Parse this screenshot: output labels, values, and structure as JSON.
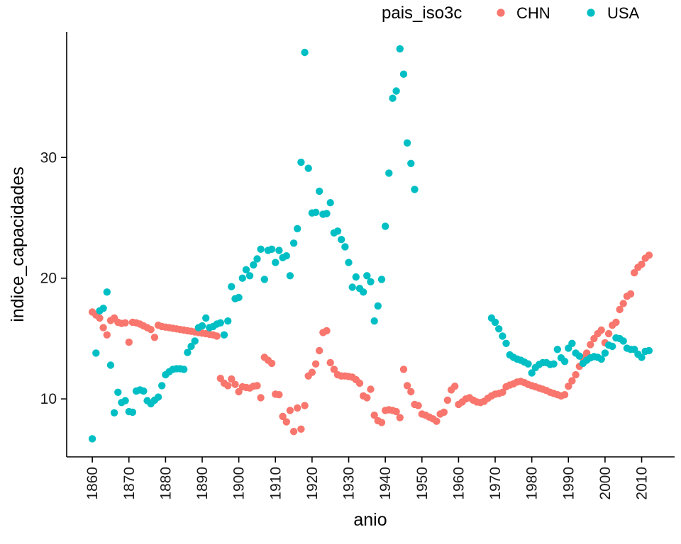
{
  "legend": {
    "title": "pais_iso3c",
    "items": [
      {
        "label": "CHN",
        "color": "#F8766D"
      },
      {
        "label": "USA",
        "color": "#00BFC4"
      }
    ]
  },
  "axes": {
    "x_label": "anio",
    "y_label": "indice_capacidades",
    "x_ticks": [
      "1860",
      "1870",
      "1880",
      "1890",
      "1900",
      "1910",
      "1920",
      "1930",
      "1940",
      "1950",
      "1960",
      "1970",
      "1980",
      "1990",
      "2000",
      "2010"
    ],
    "y_ticks": [
      "10",
      "20",
      "30"
    ]
  },
  "colors": {
    "chn": "#F8766D",
    "usa": "#00BFC4",
    "axis_line": "#000000",
    "tick_text": "#1a1a1a",
    "title_text": "#000000",
    "background": "#ffffff"
  },
  "chart_data": {
    "type": "scatter",
    "title": "",
    "xlabel": "anio",
    "ylabel": "indice_capacidades",
    "legend_title": "pais_iso3c",
    "legend_position": "top",
    "grid": false,
    "xlim": [
      1853,
      2019
    ],
    "ylim": [
      5.2,
      40.4
    ],
    "x_tick_values": [
      1860,
      1870,
      1880,
      1890,
      1900,
      1910,
      1920,
      1930,
      1940,
      1950,
      1960,
      1970,
      1980,
      1990,
      2000,
      2010
    ],
    "y_tick_values": [
      10,
      20,
      30
    ],
    "point_radius": 5.2,
    "series": [
      {
        "name": "CHN",
        "color": "#F8766D",
        "points": [
          [
            1860,
            17.2
          ],
          [
            1861,
            16.95
          ],
          [
            1862,
            16.7
          ],
          [
            1863,
            15.9
          ],
          [
            1864,
            15.3
          ],
          [
            1865,
            16.5
          ],
          [
            1866,
            16.7
          ],
          [
            1867,
            16.35
          ],
          [
            1868,
            16.25
          ],
          [
            1869,
            16.3
          ],
          [
            1870,
            14.7
          ],
          [
            1871,
            16.35
          ],
          [
            1872,
            16.3
          ],
          [
            1873,
            16.2
          ],
          [
            1874,
            16.05
          ],
          [
            1875,
            15.9
          ],
          [
            1876,
            15.75
          ],
          [
            1877,
            15.1
          ],
          [
            1878,
            16.1
          ],
          [
            1879,
            16.0
          ],
          [
            1880,
            15.95
          ],
          [
            1881,
            15.9
          ],
          [
            1882,
            15.85
          ],
          [
            1883,
            15.8
          ],
          [
            1884,
            15.75
          ],
          [
            1885,
            15.7
          ],
          [
            1886,
            15.65
          ],
          [
            1887,
            15.6
          ],
          [
            1888,
            15.55
          ],
          [
            1889,
            15.5
          ],
          [
            1890,
            15.45
          ],
          [
            1891,
            15.4
          ],
          [
            1892,
            15.35
          ],
          [
            1893,
            15.3
          ],
          [
            1894,
            15.2
          ],
          [
            1895,
            11.7
          ],
          [
            1896,
            11.3
          ],
          [
            1897,
            11.1
          ],
          [
            1898,
            11.65
          ],
          [
            1899,
            11.2
          ],
          [
            1900,
            10.6
          ],
          [
            1901,
            11.0
          ],
          [
            1902,
            10.95
          ],
          [
            1903,
            10.9
          ],
          [
            1904,
            11.05
          ],
          [
            1905,
            11.1
          ],
          [
            1906,
            10.1
          ],
          [
            1907,
            13.45
          ],
          [
            1908,
            13.2
          ],
          [
            1909,
            12.95
          ],
          [
            1910,
            10.4
          ],
          [
            1911,
            10.35
          ],
          [
            1912,
            8.55
          ],
          [
            1913,
            8.1
          ],
          [
            1914,
            9.05
          ],
          [
            1915,
            7.3
          ],
          [
            1916,
            9.25
          ],
          [
            1917,
            7.5
          ],
          [
            1918,
            9.45
          ],
          [
            1919,
            11.9
          ],
          [
            1920,
            12.2
          ],
          [
            1921,
            12.9
          ],
          [
            1922,
            14.0
          ],
          [
            1923,
            15.5
          ],
          [
            1924,
            15.65
          ],
          [
            1925,
            13.0
          ],
          [
            1926,
            12.45
          ],
          [
            1927,
            12.0
          ],
          [
            1928,
            11.9
          ],
          [
            1929,
            11.9
          ],
          [
            1930,
            11.85
          ],
          [
            1931,
            11.8
          ],
          [
            1932,
            11.6
          ],
          [
            1933,
            11.3
          ],
          [
            1934,
            10.25
          ],
          [
            1935,
            10.1
          ],
          [
            1936,
            10.8
          ],
          [
            1937,
            8.65
          ],
          [
            1938,
            8.2
          ],
          [
            1939,
            8.05
          ],
          [
            1940,
            9.05
          ],
          [
            1941,
            9.1
          ],
          [
            1942,
            9.05
          ],
          [
            1943,
            8.95
          ],
          [
            1944,
            8.45
          ],
          [
            1945,
            12.45
          ],
          [
            1946,
            11.1
          ],
          [
            1947,
            10.6
          ],
          [
            1948,
            9.55
          ],
          [
            1949,
            9.45
          ],
          [
            1950,
            8.75
          ],
          [
            1951,
            8.65
          ],
          [
            1952,
            8.5
          ],
          [
            1953,
            8.35
          ],
          [
            1954,
            8.15
          ],
          [
            1955,
            8.75
          ],
          [
            1956,
            8.9
          ],
          [
            1957,
            9.9
          ],
          [
            1958,
            10.75
          ],
          [
            1959,
            11.05
          ],
          [
            1960,
            9.55
          ],
          [
            1961,
            9.75
          ],
          [
            1962,
            10.0
          ],
          [
            1963,
            10.1
          ],
          [
            1964,
            9.9
          ],
          [
            1965,
            9.75
          ],
          [
            1966,
            9.7
          ],
          [
            1967,
            9.8
          ],
          [
            1968,
            10.05
          ],
          [
            1969,
            10.25
          ],
          [
            1970,
            10.4
          ],
          [
            1971,
            10.45
          ],
          [
            1972,
            10.55
          ],
          [
            1973,
            11.0
          ],
          [
            1974,
            11.15
          ],
          [
            1975,
            11.25
          ],
          [
            1976,
            11.4
          ],
          [
            1977,
            11.45
          ],
          [
            1978,
            11.35
          ],
          [
            1979,
            11.2
          ],
          [
            1980,
            11.1
          ],
          [
            1981,
            11.0
          ],
          [
            1982,
            10.9
          ],
          [
            1983,
            10.8
          ],
          [
            1984,
            10.7
          ],
          [
            1985,
            10.55
          ],
          [
            1986,
            10.45
          ],
          [
            1987,
            10.35
          ],
          [
            1988,
            10.25
          ],
          [
            1989,
            10.35
          ],
          [
            1990,
            11.05
          ],
          [
            1991,
            11.5
          ],
          [
            1992,
            12.0
          ],
          [
            1993,
            12.7
          ],
          [
            1994,
            13.4
          ],
          [
            1995,
            13.8
          ],
          [
            1996,
            14.5
          ],
          [
            1997,
            15.0
          ],
          [
            1998,
            15.4
          ],
          [
            1999,
            15.7
          ],
          [
            2000,
            14.65
          ],
          [
            2001,
            15.4
          ],
          [
            2002,
            16.1
          ],
          [
            2003,
            16.35
          ],
          [
            2004,
            17.4
          ],
          [
            2005,
            17.9
          ],
          [
            2006,
            18.5
          ],
          [
            2007,
            18.7
          ],
          [
            2008,
            20.45
          ],
          [
            2009,
            20.9
          ],
          [
            2010,
            21.15
          ],
          [
            2011,
            21.65
          ],
          [
            2012,
            21.9
          ]
        ]
      },
      {
        "name": "USA",
        "color": "#00BFC4",
        "points": [
          [
            1860,
            6.7
          ],
          [
            1861,
            13.8
          ],
          [
            1862,
            17.3
          ],
          [
            1863,
            17.5
          ],
          [
            1864,
            18.85
          ],
          [
            1865,
            12.8
          ],
          [
            1866,
            8.85
          ],
          [
            1867,
            10.55
          ],
          [
            1868,
            9.7
          ],
          [
            1869,
            9.85
          ],
          [
            1870,
            8.95
          ],
          [
            1871,
            8.9
          ],
          [
            1872,
            10.65
          ],
          [
            1873,
            10.75
          ],
          [
            1874,
            10.65
          ],
          [
            1875,
            9.85
          ],
          [
            1876,
            9.6
          ],
          [
            1877,
            9.9
          ],
          [
            1878,
            10.15
          ],
          [
            1879,
            11.1
          ],
          [
            1880,
            12.0
          ],
          [
            1881,
            12.25
          ],
          [
            1882,
            12.45
          ],
          [
            1883,
            12.5
          ],
          [
            1884,
            12.5
          ],
          [
            1885,
            12.45
          ],
          [
            1886,
            13.85
          ],
          [
            1887,
            14.35
          ],
          [
            1888,
            14.8
          ],
          [
            1889,
            15.9
          ],
          [
            1890,
            16.05
          ],
          [
            1891,
            16.7
          ],
          [
            1892,
            15.9
          ],
          [
            1893,
            16.0
          ],
          [
            1894,
            16.2
          ],
          [
            1895,
            16.3
          ],
          [
            1896,
            15.3
          ],
          [
            1897,
            16.45
          ],
          [
            1898,
            19.3
          ],
          [
            1899,
            18.3
          ],
          [
            1900,
            18.4
          ],
          [
            1901,
            20.0
          ],
          [
            1902,
            20.7
          ],
          [
            1903,
            20.2
          ],
          [
            1904,
            21.1
          ],
          [
            1905,
            21.6
          ],
          [
            1906,
            22.4
          ],
          [
            1907,
            19.9
          ],
          [
            1908,
            22.3
          ],
          [
            1909,
            22.4
          ],
          [
            1910,
            21.3
          ],
          [
            1911,
            22.3
          ],
          [
            1912,
            21.7
          ],
          [
            1913,
            21.85
          ],
          [
            1914,
            20.2
          ],
          [
            1915,
            22.9
          ],
          [
            1916,
            24.1
          ],
          [
            1917,
            29.6
          ],
          [
            1918,
            38.7
          ],
          [
            1919,
            29.1
          ],
          [
            1920,
            25.4
          ],
          [
            1921,
            25.45
          ],
          [
            1922,
            27.2
          ],
          [
            1923,
            25.3
          ],
          [
            1924,
            25.35
          ],
          [
            1925,
            26.25
          ],
          [
            1926,
            23.75
          ],
          [
            1927,
            23.9
          ],
          [
            1928,
            23.2
          ],
          [
            1929,
            22.6
          ],
          [
            1930,
            21.3
          ],
          [
            1931,
            19.25
          ],
          [
            1932,
            20.1
          ],
          [
            1933,
            19.15
          ],
          [
            1934,
            18.85
          ],
          [
            1935,
            20.2
          ],
          [
            1936,
            19.7
          ],
          [
            1937,
            16.45
          ],
          [
            1938,
            17.7
          ],
          [
            1939,
            19.9
          ],
          [
            1940,
            24.3
          ],
          [
            1941,
            28.7
          ],
          [
            1942,
            34.9
          ],
          [
            1943,
            35.5
          ],
          [
            1944,
            39.0
          ],
          [
            1945,
            36.9
          ],
          [
            1946,
            31.2
          ],
          [
            1947,
            29.5
          ],
          [
            1948,
            27.35
          ],
          [
            1969,
            16.7
          ],
          [
            1970,
            16.35
          ],
          [
            1971,
            15.8
          ],
          [
            1972,
            15.2
          ],
          [
            1973,
            14.6
          ],
          [
            1974,
            13.65
          ],
          [
            1975,
            13.45
          ],
          [
            1976,
            13.3
          ],
          [
            1977,
            13.2
          ],
          [
            1978,
            13.05
          ],
          [
            1979,
            12.9
          ],
          [
            1980,
            12.15
          ],
          [
            1981,
            12.6
          ],
          [
            1982,
            12.85
          ],
          [
            1983,
            13.0
          ],
          [
            1984,
            13.0
          ],
          [
            1985,
            12.85
          ],
          [
            1986,
            12.9
          ],
          [
            1987,
            14.1
          ],
          [
            1988,
            13.4
          ],
          [
            1989,
            13.1
          ],
          [
            1990,
            14.2
          ],
          [
            1991,
            14.6
          ],
          [
            1992,
            13.8
          ],
          [
            1993,
            13.55
          ],
          [
            1994,
            12.95
          ],
          [
            1995,
            13.2
          ],
          [
            1996,
            13.4
          ],
          [
            1997,
            13.5
          ],
          [
            1998,
            13.45
          ],
          [
            1999,
            13.3
          ],
          [
            2000,
            13.8
          ],
          [
            2001,
            14.45
          ],
          [
            2002,
            14.35
          ],
          [
            2003,
            15.05
          ],
          [
            2004,
            15.0
          ],
          [
            2005,
            14.8
          ],
          [
            2006,
            14.2
          ],
          [
            2007,
            14.1
          ],
          [
            2008,
            14.1
          ],
          [
            2009,
            13.7
          ],
          [
            2010,
            13.45
          ],
          [
            2011,
            13.95
          ],
          [
            2012,
            14.0
          ]
        ]
      }
    ]
  }
}
